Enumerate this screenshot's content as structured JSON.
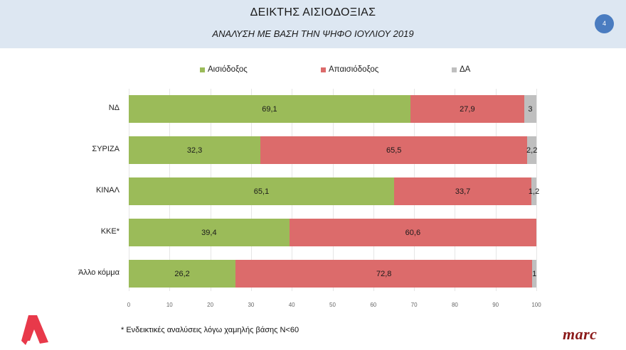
{
  "header": {
    "title": "ΔΕΙΚΤΗΣ ΑΙΣΙΟΔΟΞΙΑΣ",
    "subtitle": "ΑΝΑΛΥΣΗ ΜΕ ΒΑΣΗ ΤΗΝ ΨΗΦΟ ΙΟΥΛΙΟΥ 2019",
    "page_number": "4"
  },
  "legend": [
    {
      "label": "Αισιόδοξος",
      "color": "#9bbb59"
    },
    {
      "label": "Απαισιόδοξος",
      "color": "#dc6b6b"
    },
    {
      "label": "ΔΑ",
      "color": "#bfbfbf"
    }
  ],
  "chart_data": {
    "type": "bar",
    "orientation": "horizontal",
    "stacked": true,
    "title": "ΔΕΙΚΤΗΣ ΑΙΣΙΟΔΟΞΙΑΣ",
    "subtitle": "ΑΝΑΛΥΣΗ ΜΕ ΒΑΣΗ ΤΗΝ ΨΗΦΟ ΙΟΥΛΙΟΥ 2019",
    "categories": [
      "ΝΔ",
      "ΣΥΡΙΖΑ",
      "ΚΙΝΑΛ",
      "ΚΚΕ*",
      "Άλλο κόμμα"
    ],
    "series": [
      {
        "name": "Αισιόδοξος",
        "color": "#9bbb59",
        "values": [
          69.1,
          32.3,
          65.1,
          39.4,
          26.2
        ],
        "labels": [
          "69,1",
          "32,3",
          "65,1",
          "39,4",
          "26,2"
        ]
      },
      {
        "name": "Απαισιόδοξος",
        "color": "#dc6b6b",
        "values": [
          27.9,
          65.5,
          33.7,
          60.6,
          72.8
        ],
        "labels": [
          "27,9",
          "65,5",
          "33,7",
          "60,6",
          "72,8"
        ]
      },
      {
        "name": "ΔΑ",
        "color": "#bfbfbf",
        "values": [
          3,
          2.2,
          1.2,
          0,
          1
        ],
        "labels": [
          "3",
          "2,2",
          "1,2",
          "",
          "1"
        ]
      }
    ],
    "xlim": [
      0,
      100
    ],
    "xticks": [
      "0",
      "10",
      "20",
      "30",
      "40",
      "50",
      "60",
      "70",
      "80",
      "90",
      "100"
    ],
    "xlabel": "",
    "ylabel": "",
    "grid": true,
    "legend_position": "top"
  },
  "footnote": "* Ενδεικτικές αναλύσεις λόγω χαμηλής βάσης Ν<60",
  "branding": {
    "left_logo": "Α",
    "right_logo": "marc"
  }
}
